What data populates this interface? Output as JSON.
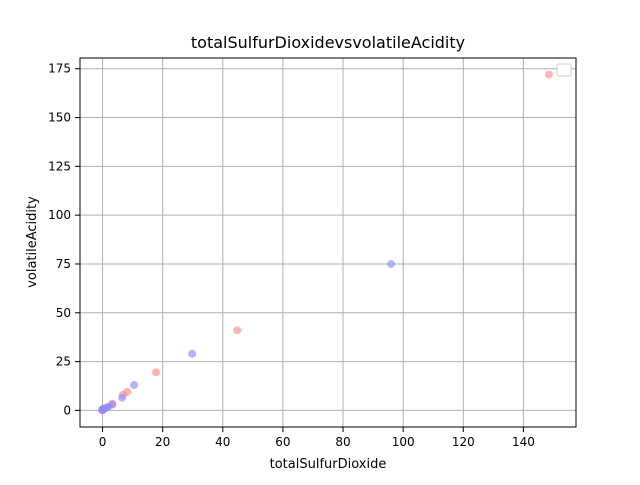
{
  "chart_data": {
    "type": "scatter",
    "title": "totalSulfurDioxidevsvolatileAcidity",
    "xlabel": "totalSulfurDioxide",
    "ylabel": "volatileAcidity",
    "xlim": [
      -7.5,
      157.5
    ],
    "ylim": [
      -8.5,
      180.5
    ],
    "x_ticks": [
      0,
      20,
      40,
      60,
      80,
      100,
      120,
      140
    ],
    "y_ticks": [
      0,
      25,
      50,
      75,
      100,
      125,
      150,
      175
    ],
    "grid": true,
    "legend": {
      "placement": "top-right",
      "entries": []
    },
    "series": [
      {
        "color": "#ff8a8a",
        "points": [
          {
            "x": 148.5,
            "y": 172
          },
          {
            "x": 44.8,
            "y": 41
          },
          {
            "x": 17.8,
            "y": 19.5
          },
          {
            "x": 8.2,
            "y": 9.5
          },
          {
            "x": 6.8,
            "y": 8
          },
          {
            "x": 3.2,
            "y": 3.5
          },
          {
            "x": 1.5,
            "y": 1.5
          },
          {
            "x": 0.5,
            "y": 0.8
          },
          {
            "x": 0.1,
            "y": 0.2
          }
        ]
      },
      {
        "color": "#8a8aff",
        "points": [
          {
            "x": 96,
            "y": 75
          },
          {
            "x": 29.8,
            "y": 29
          },
          {
            "x": 10.5,
            "y": 13
          },
          {
            "x": 6.5,
            "y": 6.5
          },
          {
            "x": 3.3,
            "y": 3
          },
          {
            "x": 1.8,
            "y": 1.8
          },
          {
            "x": 1.0,
            "y": 1.2
          },
          {
            "x": 0.2,
            "y": 0.8
          },
          {
            "x": 0.0,
            "y": 0.4
          },
          {
            "x": -0.2,
            "y": 0.1
          }
        ]
      }
    ]
  }
}
